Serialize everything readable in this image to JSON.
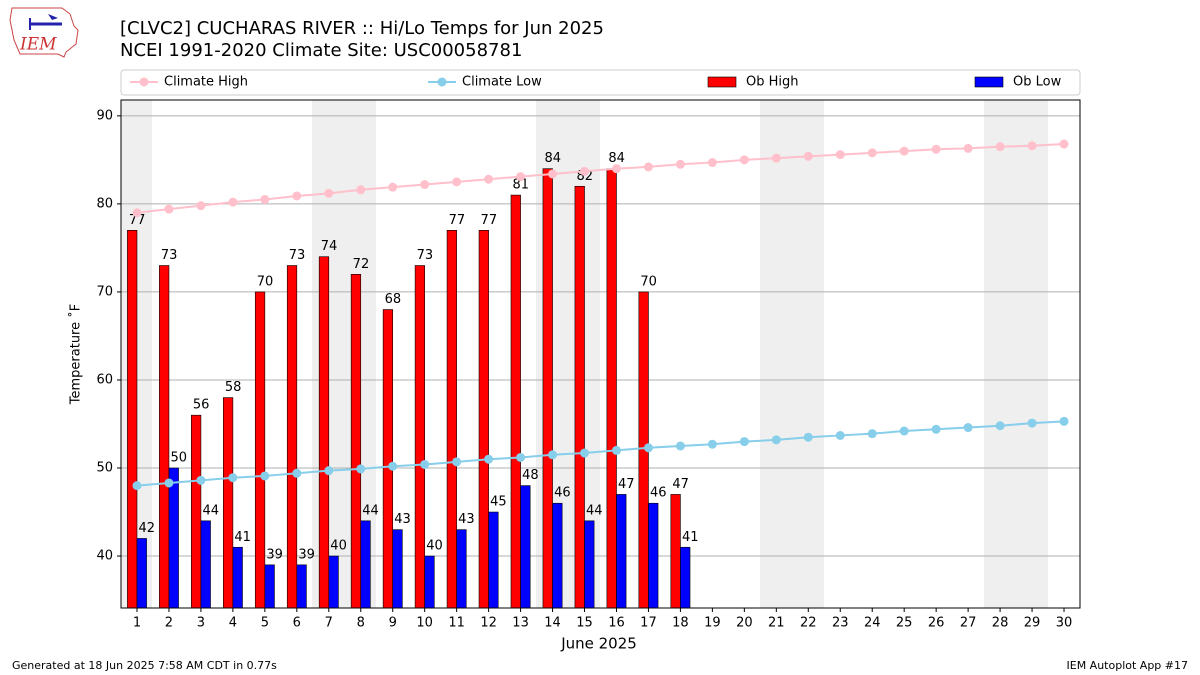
{
  "chart_data": {
    "type": "bar",
    "title": "[CLVC2] CUCHARAS RIVER :: Hi/Lo Temps for Jun 2025",
    "subtitle": "NCEI 1991-2020 Climate Site: USC00058781",
    "xlabel": "June 2025",
    "ylabel": "Temperature ˚F",
    "x": [
      1,
      2,
      3,
      4,
      5,
      6,
      7,
      8,
      9,
      10,
      11,
      12,
      13,
      14,
      15,
      16,
      17,
      18,
      19,
      20,
      21,
      22,
      23,
      24,
      25,
      26,
      27,
      28,
      29,
      30
    ],
    "xlim": [
      0.5,
      30.5
    ],
    "xticks": [
      1,
      2,
      3,
      4,
      5,
      6,
      7,
      8,
      9,
      10,
      11,
      12,
      13,
      14,
      15,
      16,
      17,
      18,
      19,
      20,
      21,
      22,
      23,
      24,
      25,
      26,
      27,
      28,
      29,
      30
    ],
    "ylim": [
      34.1,
      91.8
    ],
    "yticks": [
      40,
      50,
      60,
      70,
      80,
      90
    ],
    "grid": true,
    "series": [
      {
        "name": "Climate High",
        "type": "line",
        "color": "#ffc0cb",
        "values": [
          79.0,
          79.4,
          79.8,
          80.2,
          80.5,
          80.9,
          81.2,
          81.6,
          81.9,
          82.2,
          82.5,
          82.8,
          83.1,
          83.4,
          83.7,
          84.0,
          84.2,
          84.5,
          84.7,
          85.0,
          85.2,
          85.4,
          85.6,
          85.8,
          86.0,
          86.2,
          86.3,
          86.5,
          86.6,
          86.8
        ]
      },
      {
        "name": "Climate Low",
        "type": "line",
        "color": "#87ceeb",
        "values": [
          48.0,
          48.3,
          48.6,
          48.9,
          49.1,
          49.4,
          49.7,
          49.9,
          50.2,
          50.4,
          50.7,
          51.0,
          51.2,
          51.5,
          51.7,
          52.0,
          52.3,
          52.5,
          52.7,
          53.0,
          53.2,
          53.5,
          53.7,
          53.9,
          54.2,
          54.4,
          54.6,
          54.8,
          55.1,
          55.3
        ]
      },
      {
        "name": "Ob High",
        "type": "bar",
        "color": "#ff0000",
        "values": [
          77,
          73,
          56,
          58,
          70,
          73,
          74,
          72,
          68,
          73,
          77,
          77,
          81,
          84,
          82,
          84,
          70,
          47,
          null,
          null,
          null,
          null,
          null,
          null,
          null,
          null,
          null,
          null,
          null,
          null
        ]
      },
      {
        "name": "Ob Low",
        "type": "bar",
        "color": "#0000ff",
        "values": [
          42,
          50,
          44,
          41,
          39,
          39,
          40,
          44,
          43,
          40,
          43,
          45,
          48,
          46,
          44,
          47,
          46,
          41,
          null,
          null,
          null,
          null,
          null,
          null,
          null,
          null,
          null,
          null,
          null,
          null
        ]
      }
    ],
    "logo_text": "IEM",
    "footer_left": "Generated at 18 Jun 2025 7:58 AM CDT in 0.77s",
    "footer_right": "IEM Autoplot App #17"
  }
}
